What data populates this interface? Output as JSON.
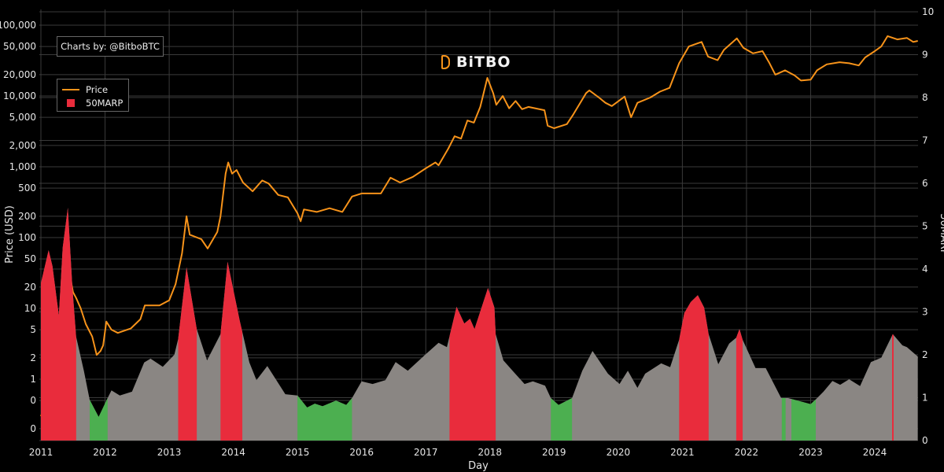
{
  "credit": "Charts by: @BitboBTC",
  "logo": "BiTBO",
  "legend": [
    {
      "label": "Price",
      "color": "#f7931a",
      "kind": "line"
    },
    {
      "label": "50MARP",
      "color": "#e92c3c",
      "kind": "box"
    }
  ],
  "chart_data": {
    "type": "line+area",
    "xlabel": "Day",
    "ylabel": "Price (USD)",
    "y2label": "50MARP",
    "x_ticks": [
      "2011",
      "2012",
      "2013",
      "2014",
      "2015",
      "2016",
      "2017",
      "2018",
      "2019",
      "2020",
      "2021",
      "2022",
      "2023",
      "2024"
    ],
    "xlim": [
      2011.0,
      2024.67
    ],
    "y_scale": "log",
    "y_tick_values": [
      100000,
      50000,
      20000,
      10000,
      5000,
      2000,
      1000,
      500,
      200,
      100,
      50,
      20,
      10,
      5,
      2,
      1,
      0.5,
      0.2
    ],
    "y_tick_labels": [
      "100,000",
      "50,000",
      "20,000",
      "10,000",
      "5,000",
      "2,000",
      "1,000",
      "500",
      "200",
      "100",
      "50",
      "20",
      "10",
      "5",
      "2",
      "1",
      "0",
      "0"
    ],
    "y2_ticks": [
      "0",
      "1",
      "2",
      "3",
      "4",
      "5",
      "6",
      "7",
      "8",
      "9",
      "10"
    ],
    "y2lim": [
      0,
      10
    ],
    "grid": true,
    "legend_position": "top-left",
    "colors": {
      "price": "#f7931a",
      "marp": "#8a8683",
      "high_zone": "#e92c3c",
      "low_zone": "#4caf50"
    },
    "series": [
      {
        "name": "Price",
        "axis": "left",
        "points": [
          [
            2011.0,
            0.3
          ],
          [
            2011.2,
            0.9
          ],
          [
            2011.35,
            8
          ],
          [
            2011.45,
            30
          ],
          [
            2011.5,
            17
          ],
          [
            2011.55,
            14
          ],
          [
            2011.62,
            10
          ],
          [
            2011.7,
            6
          ],
          [
            2011.8,
            4
          ],
          [
            2011.87,
            2.2
          ],
          [
            2011.93,
            2.5
          ],
          [
            2011.97,
            3
          ],
          [
            2012.02,
            6.5
          ],
          [
            2012.1,
            5
          ],
          [
            2012.2,
            4.5
          ],
          [
            2012.4,
            5.2
          ],
          [
            2012.55,
            7
          ],
          [
            2012.62,
            11
          ],
          [
            2012.7,
            11
          ],
          [
            2012.85,
            11
          ],
          [
            2013.0,
            13
          ],
          [
            2013.1,
            22
          ],
          [
            2013.2,
            60
          ],
          [
            2013.27,
            200
          ],
          [
            2013.32,
            110
          ],
          [
            2013.5,
            95
          ],
          [
            2013.6,
            70
          ],
          [
            2013.75,
            120
          ],
          [
            2013.8,
            200
          ],
          [
            2013.88,
            800
          ],
          [
            2013.92,
            1150
          ],
          [
            2013.98,
            800
          ],
          [
            2014.05,
            900
          ],
          [
            2014.15,
            600
          ],
          [
            2014.3,
            450
          ],
          [
            2014.45,
            640
          ],
          [
            2014.55,
            580
          ],
          [
            2014.7,
            400
          ],
          [
            2014.85,
            370
          ],
          [
            2015.0,
            220
          ],
          [
            2015.05,
            170
          ],
          [
            2015.1,
            250
          ],
          [
            2015.3,
            230
          ],
          [
            2015.5,
            260
          ],
          [
            2015.7,
            230
          ],
          [
            2015.85,
            380
          ],
          [
            2016.0,
            420
          ],
          [
            2016.3,
            420
          ],
          [
            2016.45,
            700
          ],
          [
            2016.6,
            600
          ],
          [
            2016.8,
            720
          ],
          [
            2017.0,
            950
          ],
          [
            2017.15,
            1150
          ],
          [
            2017.2,
            1050
          ],
          [
            2017.35,
            1800
          ],
          [
            2017.45,
            2700
          ],
          [
            2017.55,
            2500
          ],
          [
            2017.65,
            4500
          ],
          [
            2017.75,
            4200
          ],
          [
            2017.85,
            7000
          ],
          [
            2017.96,
            18000
          ],
          [
            2018.05,
            11000
          ],
          [
            2018.1,
            7500
          ],
          [
            2018.2,
            10000
          ],
          [
            2018.3,
            6700
          ],
          [
            2018.4,
            8500
          ],
          [
            2018.5,
            6500
          ],
          [
            2018.6,
            7000
          ],
          [
            2018.85,
            6300
          ],
          [
            2018.9,
            3800
          ],
          [
            2019.0,
            3500
          ],
          [
            2019.2,
            4000
          ],
          [
            2019.3,
            5500
          ],
          [
            2019.5,
            11000
          ],
          [
            2019.55,
            12000
          ],
          [
            2019.7,
            9500
          ],
          [
            2019.8,
            8000
          ],
          [
            2019.9,
            7200
          ],
          [
            2020.1,
            9800
          ],
          [
            2020.2,
            5000
          ],
          [
            2020.3,
            8000
          ],
          [
            2020.5,
            9500
          ],
          [
            2020.65,
            11500
          ],
          [
            2020.8,
            13000
          ],
          [
            2020.95,
            29000
          ],
          [
            2021.1,
            50000
          ],
          [
            2021.3,
            58000
          ],
          [
            2021.4,
            36000
          ],
          [
            2021.55,
            32000
          ],
          [
            2021.65,
            45000
          ],
          [
            2021.85,
            65000
          ],
          [
            2021.95,
            48000
          ],
          [
            2022.1,
            40000
          ],
          [
            2022.25,
            43000
          ],
          [
            2022.35,
            30000
          ],
          [
            2022.45,
            20000
          ],
          [
            2022.6,
            23000
          ],
          [
            2022.75,
            19500
          ],
          [
            2022.85,
            16500
          ],
          [
            2023.0,
            17000
          ],
          [
            2023.1,
            23000
          ],
          [
            2023.25,
            28000
          ],
          [
            2023.45,
            30000
          ],
          [
            2023.6,
            29000
          ],
          [
            2023.75,
            27000
          ],
          [
            2023.85,
            35000
          ],
          [
            2024.0,
            43000
          ],
          [
            2024.1,
            50000
          ],
          [
            2024.2,
            70000
          ],
          [
            2024.35,
            63000
          ],
          [
            2024.5,
            66000
          ],
          [
            2024.6,
            58000
          ],
          [
            2024.67,
            60000
          ]
        ]
      },
      {
        "name": "50MARP",
        "axis": "right",
        "points": [
          [
            2011.0,
            3.67
          ],
          [
            2011.12,
            4.44
          ],
          [
            2011.18,
            4.07
          ],
          [
            2011.28,
            2.92
          ],
          [
            2011.34,
            4.5
          ],
          [
            2011.42,
            5.43
          ],
          [
            2011.49,
            3.58
          ],
          [
            2011.55,
            2.42
          ],
          [
            2011.67,
            1.63
          ],
          [
            2011.76,
            0.95
          ],
          [
            2011.9,
            0.55
          ],
          [
            2012.04,
            0.99
          ],
          [
            2012.1,
            1.17
          ],
          [
            2012.23,
            1.05
          ],
          [
            2012.42,
            1.14
          ],
          [
            2012.61,
            1.82
          ],
          [
            2012.71,
            1.91
          ],
          [
            2012.9,
            1.72
          ],
          [
            2013.08,
            2.0
          ],
          [
            2013.14,
            2.37
          ],
          [
            2013.27,
            4.04
          ],
          [
            2013.43,
            2.6
          ],
          [
            2013.59,
            1.87
          ],
          [
            2013.8,
            2.48
          ],
          [
            2013.91,
            4.17
          ],
          [
            2014.1,
            2.79
          ],
          [
            2014.25,
            1.82
          ],
          [
            2014.36,
            1.41
          ],
          [
            2014.53,
            1.74
          ],
          [
            2014.81,
            1.08
          ],
          [
            2015.0,
            1.05
          ],
          [
            2015.15,
            0.77
          ],
          [
            2015.27,
            0.86
          ],
          [
            2015.39,
            0.8
          ],
          [
            2015.6,
            0.93
          ],
          [
            2015.76,
            0.83
          ],
          [
            2015.85,
            0.99
          ],
          [
            2016.0,
            1.38
          ],
          [
            2016.17,
            1.32
          ],
          [
            2016.37,
            1.41
          ],
          [
            2016.53,
            1.83
          ],
          [
            2016.72,
            1.63
          ],
          [
            2016.99,
            2.0
          ],
          [
            2017.2,
            2.28
          ],
          [
            2017.33,
            2.18
          ],
          [
            2017.48,
            3.12
          ],
          [
            2017.6,
            2.73
          ],
          [
            2017.69,
            2.84
          ],
          [
            2017.76,
            2.6
          ],
          [
            2017.97,
            3.56
          ],
          [
            2018.07,
            3.1
          ],
          [
            2018.09,
            2.48
          ],
          [
            2018.21,
            1.87
          ],
          [
            2018.37,
            1.6
          ],
          [
            2018.54,
            1.32
          ],
          [
            2018.67,
            1.38
          ],
          [
            2018.86,
            1.28
          ],
          [
            2018.95,
            0.99
          ],
          [
            2019.07,
            0.83
          ],
          [
            2019.28,
            0.99
          ],
          [
            2019.44,
            1.63
          ],
          [
            2019.6,
            2.09
          ],
          [
            2019.84,
            1.56
          ],
          [
            2020.02,
            1.32
          ],
          [
            2020.15,
            1.63
          ],
          [
            2020.3,
            1.23
          ],
          [
            2020.42,
            1.56
          ],
          [
            2020.67,
            1.8
          ],
          [
            2020.81,
            1.71
          ],
          [
            2020.95,
            2.35
          ],
          [
            2021.03,
            2.97
          ],
          [
            2021.13,
            3.23
          ],
          [
            2021.24,
            3.39
          ],
          [
            2021.34,
            3.1
          ],
          [
            2021.41,
            2.48
          ],
          [
            2021.56,
            1.78
          ],
          [
            2021.73,
            2.26
          ],
          [
            2021.84,
            2.4
          ],
          [
            2021.89,
            2.6
          ],
          [
            2021.94,
            2.35
          ],
          [
            2022.14,
            1.69
          ],
          [
            2022.3,
            1.69
          ],
          [
            2022.54,
            0.99
          ],
          [
            2022.65,
            0.99
          ],
          [
            2022.87,
            0.9
          ],
          [
            2023.0,
            0.85
          ],
          [
            2023.08,
            0.96
          ],
          [
            2023.2,
            1.14
          ],
          [
            2023.34,
            1.39
          ],
          [
            2023.46,
            1.3
          ],
          [
            2023.6,
            1.43
          ],
          [
            2023.77,
            1.27
          ],
          [
            2023.94,
            1.83
          ],
          [
            2024.1,
            1.93
          ],
          [
            2024.28,
            2.48
          ],
          [
            2024.43,
            2.22
          ],
          [
            2024.5,
            2.18
          ],
          [
            2024.67,
            1.96
          ]
        ]
      }
    ],
    "zones": [
      {
        "from": 2011.0,
        "to": 2011.55,
        "zone": "high"
      },
      {
        "from": 2011.76,
        "to": 2012.04,
        "zone": "low"
      },
      {
        "from": 2013.14,
        "to": 2013.43,
        "zone": "high"
      },
      {
        "from": 2013.8,
        "to": 2014.14,
        "zone": "high"
      },
      {
        "from": 2015.0,
        "to": 2015.85,
        "zone": "low"
      },
      {
        "from": 2017.37,
        "to": 2018.09,
        "zone": "high"
      },
      {
        "from": 2018.95,
        "to": 2019.28,
        "zone": "low"
      },
      {
        "from": 2020.95,
        "to": 2021.41,
        "zone": "high"
      },
      {
        "from": 2021.84,
        "to": 2021.94,
        "zone": "high"
      },
      {
        "from": 2022.55,
        "to": 2022.61,
        "zone": "low"
      },
      {
        "from": 2022.7,
        "to": 2023.08,
        "zone": "low"
      },
      {
        "from": 2024.27,
        "to": 2024.29,
        "zone": "high"
      }
    ]
  }
}
